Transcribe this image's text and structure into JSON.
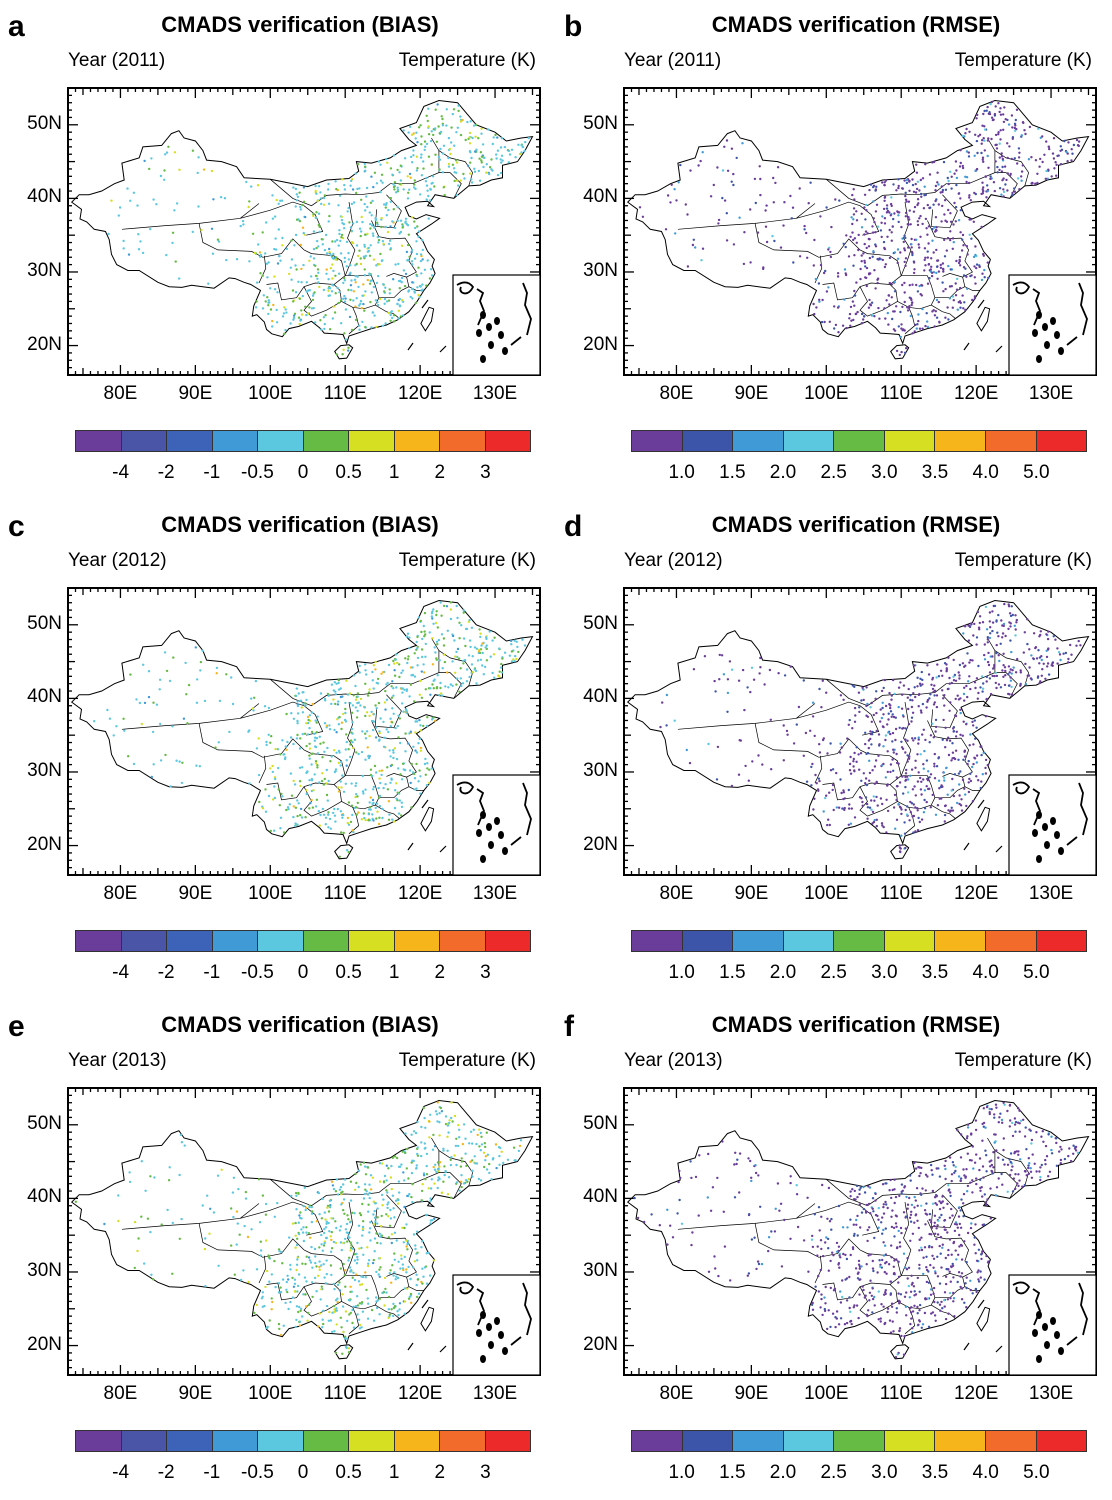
{
  "panels": [
    {
      "id": "a",
      "letter": "a",
      "title": "CMADS verification (BIAS)",
      "year": "Year (2011)",
      "var": "Temperature (K)",
      "kind": "bias",
      "density": 1.0
    },
    {
      "id": "b",
      "letter": "b",
      "title": "CMADS verification (RMSE)",
      "year": "Year (2011)",
      "var": "Temperature (K)",
      "kind": "rmse",
      "density": 1.0
    },
    {
      "id": "c",
      "letter": "c",
      "title": "CMADS verification (BIAS)",
      "year": "Year (2012)",
      "var": "Temperature (K)",
      "kind": "bias",
      "density": 1.0
    },
    {
      "id": "d",
      "letter": "d",
      "title": "CMADS verification (RMSE)",
      "year": "Year (2012)",
      "var": "Temperature (K)",
      "kind": "rmse",
      "density": 1.0
    },
    {
      "id": "e",
      "letter": "e",
      "title": "CMADS verification (BIAS)",
      "year": "Year (2013)",
      "var": "Temperature (K)",
      "kind": "bias",
      "density": 1.0
    },
    {
      "id": "f",
      "letter": "f",
      "title": "CMADS verification (RMSE)",
      "year": "Year (2013)",
      "var": "Temperature (K)",
      "kind": "rmse",
      "density": 1.0
    }
  ],
  "axes": {
    "lat_labels": [
      "50N",
      "40N",
      "30N",
      "20N"
    ],
    "lon_labels": [
      "80E",
      "90E",
      "100E",
      "110E",
      "120E",
      "130E"
    ]
  },
  "colorbars": {
    "bias": {
      "colors": [
        "#6a3d9a",
        "#4b55a8",
        "#3d63b8",
        "#3f9ad6",
        "#5cc8e0",
        "#66bb44",
        "#d7df23",
        "#f7b51c",
        "#f26b2a",
        "#ec2a2a"
      ],
      "labels": [
        "-4",
        "-2",
        "-1",
        "-0.5",
        "0",
        "0.5",
        "1",
        "2",
        "3"
      ]
    },
    "rmse": {
      "colors": [
        "#6a3d9a",
        "#3d55a8",
        "#3f9ad6",
        "#5cc8e0",
        "#66bb44",
        "#d7df23",
        "#f7b51c",
        "#f26b2a",
        "#ec2a2a"
      ],
      "labels": [
        "1.0",
        "1.5",
        "2.0",
        "2.5",
        "3.0",
        "3.5",
        "4.0",
        "5.0"
      ]
    }
  }
}
